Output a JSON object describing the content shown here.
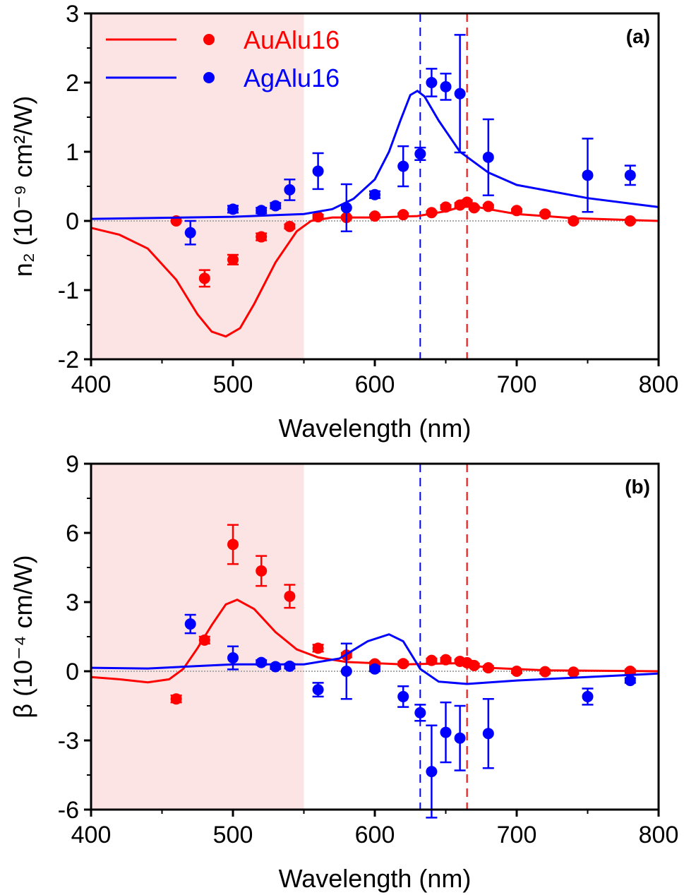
{
  "colors": {
    "AuAlu16": "#ff0000",
    "AgAlu16": "#0000ff",
    "shade": "#fde4e4",
    "zero_line": "#aaaaaa"
  },
  "legend": {
    "placement": "top-left",
    "entries": [
      "AuAlu16",
      "AgAlu16"
    ]
  },
  "chart_data": [
    {
      "type": "scatter",
      "panel_label": "(a)",
      "xlabel": "Wavelength (nm)",
      "ylabel": "n₂ (10⁻⁹ cm²/W)",
      "xlim": [
        400,
        800
      ],
      "ylim": [
        -2,
        3
      ],
      "xticks": [
        400,
        500,
        600,
        700,
        800
      ],
      "yticks": [
        -2,
        -1,
        0,
        1,
        2,
        3
      ],
      "shaded_region": [
        400,
        550
      ],
      "vlines": [
        {
          "x": 632,
          "series": "AgAlu16"
        },
        {
          "x": 665,
          "series": "AuAlu16"
        }
      ],
      "series": [
        {
          "name": "AuAlu16",
          "points": [
            [
              460,
              0.0,
              0
            ],
            [
              480,
              -0.83,
              0.12
            ],
            [
              500,
              -0.56,
              0.07
            ],
            [
              520,
              -0.23,
              0.05
            ],
            [
              540,
              -0.08,
              0.03
            ],
            [
              560,
              0.06,
              0.03
            ],
            [
              580,
              0.05,
              0.02
            ],
            [
              600,
              0.07,
              0.02
            ],
            [
              620,
              0.09,
              0.02
            ],
            [
              640,
              0.12,
              0.02
            ],
            [
              650,
              0.2,
              0.03
            ],
            [
              660,
              0.23,
              0.03
            ],
            [
              665,
              0.27,
              0.03
            ],
            [
              670,
              0.19,
              0.02
            ],
            [
              680,
              0.21,
              0.02
            ],
            [
              700,
              0.15,
              0.02
            ],
            [
              720,
              0.1,
              0.02
            ],
            [
              740,
              0.0,
              0.02
            ],
            [
              780,
              0.0,
              0.02
            ]
          ],
          "fit": [
            [
              400,
              -0.1
            ],
            [
              420,
              -0.2
            ],
            [
              440,
              -0.4
            ],
            [
              460,
              -0.85
            ],
            [
              475,
              -1.35
            ],
            [
              485,
              -1.6
            ],
            [
              495,
              -1.67
            ],
            [
              505,
              -1.55
            ],
            [
              515,
              -1.2
            ],
            [
              530,
              -0.6
            ],
            [
              545,
              -0.15
            ],
            [
              555,
              0.0
            ],
            [
              570,
              0.05
            ],
            [
              600,
              0.05
            ],
            [
              630,
              0.07
            ],
            [
              650,
              0.14
            ],
            [
              665,
              0.23
            ],
            [
              680,
              0.17
            ],
            [
              700,
              0.1
            ],
            [
              740,
              0.04
            ],
            [
              800,
              0.0
            ]
          ]
        },
        {
          "name": "AgAlu16",
          "points": [
            [
              470,
              -0.17,
              0.17
            ],
            [
              500,
              0.17,
              0.05
            ],
            [
              520,
              0.15,
              0.04
            ],
            [
              530,
              0.22,
              0.04
            ],
            [
              540,
              0.45,
              0.15
            ],
            [
              560,
              0.72,
              0.26
            ],
            [
              580,
              0.19,
              0.34
            ],
            [
              600,
              0.38,
              0.05
            ],
            [
              620,
              0.79,
              0.29
            ],
            [
              632,
              0.97,
              0.09
            ],
            [
              640,
              2.0,
              0.2
            ],
            [
              650,
              1.94,
              0.19
            ],
            [
              660,
              1.84,
              0.85
            ],
            [
              680,
              0.92,
              0.55
            ],
            [
              750,
              0.66,
              0.53
            ],
            [
              780,
              0.66,
              0.14
            ]
          ],
          "fit": [
            [
              400,
              0.03
            ],
            [
              500,
              0.06
            ],
            [
              550,
              0.1
            ],
            [
              570,
              0.17
            ],
            [
              585,
              0.32
            ],
            [
              600,
              0.6
            ],
            [
              610,
              1.0
            ],
            [
              618,
              1.45
            ],
            [
              625,
              1.82
            ],
            [
              630,
              1.88
            ],
            [
              635,
              1.8
            ],
            [
              645,
              1.45
            ],
            [
              660,
              1.0
            ],
            [
              680,
              0.7
            ],
            [
              700,
              0.52
            ],
            [
              750,
              0.33
            ],
            [
              800,
              0.2
            ]
          ]
        }
      ]
    },
    {
      "type": "scatter",
      "panel_label": "(b)",
      "xlabel": "Wavelength (nm)",
      "ylabel": "β (10⁻⁴ cm/W)",
      "xlim": [
        400,
        800
      ],
      "ylim": [
        -6,
        9
      ],
      "xticks": [
        400,
        500,
        600,
        700,
        800
      ],
      "yticks": [
        -6,
        -3,
        0,
        3,
        6,
        9
      ],
      "shaded_region": [
        400,
        550
      ],
      "vlines": [
        {
          "x": 632,
          "series": "AgAlu16"
        },
        {
          "x": 665,
          "series": "AuAlu16"
        }
      ],
      "series": [
        {
          "name": "AuAlu16",
          "points": [
            [
              460,
              -1.2,
              0.15
            ],
            [
              480,
              1.35,
              0.15
            ],
            [
              500,
              5.5,
              0.85
            ],
            [
              520,
              4.35,
              0.65
            ],
            [
              540,
              3.25,
              0.5
            ],
            [
              560,
              1.0,
              0.15
            ],
            [
              580,
              0.7,
              0.1
            ],
            [
              600,
              0.32,
              0.08
            ],
            [
              620,
              0.33,
              0.08
            ],
            [
              640,
              0.47,
              0.08
            ],
            [
              650,
              0.5,
              0.08
            ],
            [
              660,
              0.43,
              0.08
            ],
            [
              665,
              0.37,
              0.08
            ],
            [
              670,
              0.25,
              0.08
            ],
            [
              680,
              0.15,
              0.08
            ],
            [
              700,
              0.0,
              0.08
            ],
            [
              720,
              -0.02,
              0.08
            ],
            [
              740,
              -0.04,
              0.08
            ],
            [
              780,
              0.0,
              0.08
            ]
          ],
          "fit": [
            [
              400,
              -0.25
            ],
            [
              420,
              -0.35
            ],
            [
              440,
              -0.48
            ],
            [
              455,
              -0.35
            ],
            [
              465,
              0.1
            ],
            [
              475,
              1.0
            ],
            [
              485,
              2.0
            ],
            [
              495,
              2.9
            ],
            [
              503,
              3.1
            ],
            [
              515,
              2.7
            ],
            [
              530,
              1.7
            ],
            [
              545,
              0.95
            ],
            [
              560,
              0.6
            ],
            [
              580,
              0.4
            ],
            [
              620,
              0.3
            ],
            [
              660,
              0.35
            ],
            [
              680,
              0.15
            ],
            [
              720,
              0.04
            ],
            [
              800,
              0.0
            ]
          ]
        },
        {
          "name": "AgAlu16",
          "points": [
            [
              470,
              2.05,
              0.4
            ],
            [
              500,
              0.58,
              0.5
            ],
            [
              520,
              0.38,
              0.1
            ],
            [
              530,
              0.2,
              0.1
            ],
            [
              540,
              0.22,
              0.1
            ],
            [
              560,
              -0.8,
              0.3
            ],
            [
              580,
              0.0,
              1.2
            ],
            [
              600,
              0.1,
              0.1
            ],
            [
              620,
              -1.1,
              0.45
            ],
            [
              632,
              -1.8,
              0.35
            ],
            [
              640,
              -4.35,
              2.0
            ],
            [
              650,
              -2.65,
              1.3
            ],
            [
              660,
              -2.9,
              1.4
            ],
            [
              680,
              -2.7,
              1.5
            ],
            [
              750,
              -1.1,
              0.35
            ],
            [
              780,
              -0.4,
              0.1
            ]
          ],
          "fit": [
            [
              400,
              0.15
            ],
            [
              440,
              0.12
            ],
            [
              500,
              0.3
            ],
            [
              550,
              0.3
            ],
            [
              575,
              0.55
            ],
            [
              595,
              1.3
            ],
            [
              610,
              1.6
            ],
            [
              620,
              1.3
            ],
            [
              627,
              0.6
            ],
            [
              632,
              0.1
            ],
            [
              645,
              -0.45
            ],
            [
              665,
              -0.55
            ],
            [
              700,
              -0.4
            ],
            [
              800,
              -0.1
            ]
          ]
        }
      ]
    }
  ]
}
